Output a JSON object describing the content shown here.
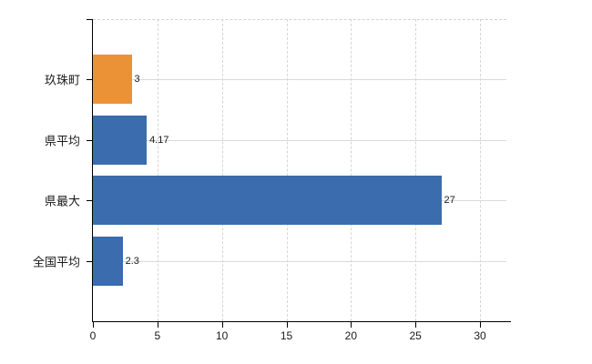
{
  "chart_data": {
    "type": "bar",
    "orientation": "horizontal",
    "title": "",
    "xlabel": "",
    "ylabel": "",
    "categories": [
      "玖珠町",
      "県平均",
      "県最大",
      "全国平均"
    ],
    "values": [
      3,
      4.17,
      27,
      2.3
    ],
    "value_labels": [
      "3",
      "4.17",
      "27",
      "2.3"
    ],
    "bar_colors": [
      "#ec9236",
      "#3b6cad",
      "#3b6cad",
      "#3b6cad"
    ],
    "x_ticks": [
      0,
      5,
      10,
      15,
      20,
      25,
      30
    ],
    "xlim": [
      0,
      32.4
    ],
    "grid": true,
    "legend": false,
    "layout": {
      "axis_color": "#000000",
      "grid_color_h": "#dadada",
      "grid_color_v": "#d6d6d6",
      "text_color": "#1a1a1a",
      "background": "#ffffff"
    }
  }
}
